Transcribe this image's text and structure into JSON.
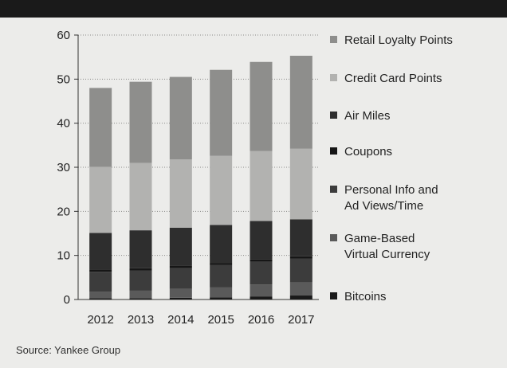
{
  "chart_data": {
    "type": "bar",
    "stacked": true,
    "categories": [
      "2012",
      "2013",
      "2014",
      "2015",
      "2016",
      "2017"
    ],
    "ylim": [
      0,
      60
    ],
    "yticks": [
      "0",
      "10",
      "20",
      "30",
      "40",
      "50",
      "60"
    ],
    "grid": "dotted horizontal",
    "legend_position": "right",
    "series": [
      {
        "name": "Bitcoins",
        "color": "#1a1a1a",
        "values": [
          0.3,
          0.3,
          0.4,
          0.5,
          0.7,
          0.9
        ]
      },
      {
        "name": "Game-Based Virtual Currency",
        "color": "#5a5a5a",
        "values": [
          1.5,
          1.7,
          2.0,
          2.3,
          2.7,
          3.0
        ]
      },
      {
        "name": "Personal Info and Ad Views/Time",
        "color": "#3c3c3c",
        "values": [
          4.5,
          4.6,
          4.7,
          5.0,
          5.2,
          5.4
        ]
      },
      {
        "name": "Coupons",
        "color": "#161616",
        "values": [
          0.5,
          0.5,
          0.5,
          0.5,
          0.5,
          0.5
        ]
      },
      {
        "name": "Air Miles",
        "color": "#2e2e2e",
        "values": [
          8.3,
          8.6,
          8.7,
          8.6,
          8.7,
          8.4
        ]
      },
      {
        "name": "Credit Card Points",
        "color": "#b2b2b0",
        "values": [
          15.0,
          15.3,
          15.5,
          15.7,
          15.9,
          16.0
        ]
      },
      {
        "name": "Retail Loyalty Points",
        "color": "#8e8e8c",
        "values": [
          17.9,
          18.4,
          18.7,
          19.5,
          20.2,
          21.1
        ]
      }
    ],
    "legend_order": [
      "Retail Loyalty Points",
      "Credit Card Points",
      "Air Miles",
      "Coupons",
      "Personal Info and Ad Views/Time",
      "Game-Based Virtual Currency",
      "Bitcoins"
    ],
    "legend_lines": {
      "Retail Loyalty Points": [
        "Retail Loyalty Points"
      ],
      "Credit Card Points": [
        "Credit Card Points"
      ],
      "Air Miles": [
        "Air Miles"
      ],
      "Coupons": [
        "Coupons"
      ],
      "Personal Info and Ad Views/Time": [
        "Personal Info and",
        "Ad Views/Time"
      ],
      "Game-Based Virtual Currency": [
        "Game-Based",
        "Virtual Currency"
      ],
      "Bitcoins": [
        "Bitcoins"
      ]
    }
  },
  "source": "Source: Yankee Group"
}
